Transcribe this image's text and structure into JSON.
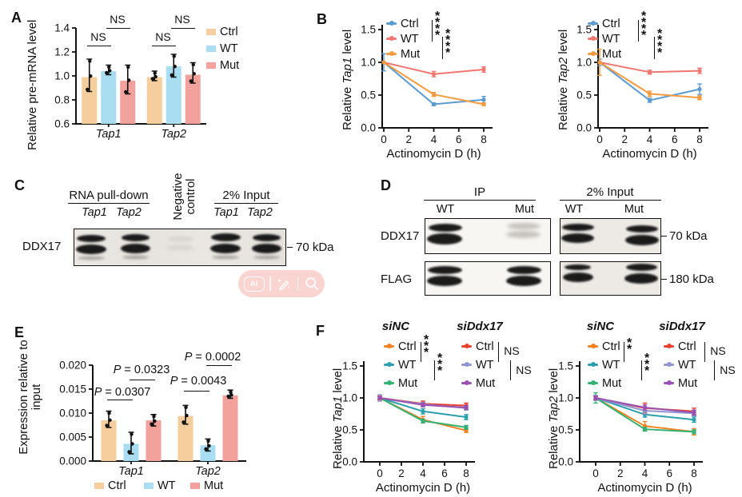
{
  "figure": {
    "panels": {
      "a": "A",
      "b": "B",
      "c": "C",
      "d": "D",
      "e": "E",
      "f": "F"
    }
  },
  "panelC": {
    "group1": "RNA pull-down",
    "group2": "Negative control",
    "group3": "2% Input",
    "lanes": [
      "Tap1",
      "Tap2",
      "Tap1",
      "Tap2"
    ],
    "row_label": "DDX17",
    "marker": "70 kDa"
  },
  "panelD": {
    "groups": [
      "IP",
      "2% Input"
    ],
    "lanes": [
      "WT",
      "Mut",
      "WT",
      "Mut"
    ],
    "rows": [
      "DDX17",
      "FLAG"
    ],
    "markers": [
      "70 kDa",
      "180 kDa"
    ]
  },
  "overlay": {
    "ai_label": "AI"
  },
  "chart_data": [
    {
      "id": "A",
      "type": "bar",
      "ylabel": "Relative pre-mRNA level",
      "ylim": [
        0.6,
        1.4
      ],
      "yticks": [
        0.6,
        0.8,
        1.0,
        1.2,
        1.4
      ],
      "ytick_labels": [
        "0.6",
        "0.8",
        "1.0",
        "1.2",
        "1.4"
      ],
      "categories": [
        "Tap1",
        "Tap2"
      ],
      "grid": false,
      "legend_position": "right",
      "series": [
        {
          "name": "Ctrl",
          "color": "#F6CE9E",
          "values": [
            0.99,
            0.99
          ],
          "err_lo": [
            0.87,
            0.96
          ],
          "err_hi": [
            1.14,
            1.04
          ]
        },
        {
          "name": "WT",
          "color": "#A9DDF1",
          "values": [
            1.04,
            1.08
          ],
          "err_lo": [
            1.01,
            0.99
          ],
          "err_hi": [
            1.09,
            1.18
          ]
        },
        {
          "name": "Mut",
          "color": "#F2A19C",
          "values": [
            0.96,
            1.01
          ],
          "err_lo": [
            0.85,
            0.94
          ],
          "err_hi": [
            1.09,
            1.11
          ]
        }
      ],
      "significance": [
        "NS",
        "NS",
        "NS",
        "NS"
      ]
    },
    {
      "id": "B1",
      "type": "line",
      "ylabel_pre": "Relative ",
      "ylabel_gene": "Tap1",
      "ylabel_post": " level",
      "xlabel": "Actinomycin D (h)",
      "x": [
        0,
        4,
        8
      ],
      "xticks": [
        0,
        2,
        4,
        6,
        8
      ],
      "ylim": [
        0,
        1.5
      ],
      "yticks": [
        0,
        0.5,
        1.0,
        1.5
      ],
      "ytick_labels": [
        "0.0",
        "0.5",
        "1.0",
        "1.5"
      ],
      "grid": false,
      "legend_position": "top-left",
      "series": [
        {
          "name": "Ctrl",
          "color": "#5C9AD2",
          "values": [
            1.0,
            0.36,
            0.43
          ],
          "err": [
            0.13,
            0.02,
            0.05
          ]
        },
        {
          "name": "WT",
          "color": "#F0766F",
          "values": [
            1.0,
            0.82,
            0.89
          ],
          "err": [
            0,
            0.04,
            0.04
          ]
        },
        {
          "name": "Mut",
          "color": "#F29B40",
          "values": [
            1.0,
            0.51,
            0.36
          ],
          "err": [
            0,
            0.03,
            0.02
          ]
        }
      ],
      "significance": [
        "****",
        "****"
      ]
    },
    {
      "id": "B2",
      "type": "line",
      "ylabel_pre": "Relative ",
      "ylabel_gene": "Tap2",
      "ylabel_post": " level",
      "xlabel": "Actinomycin D (h)",
      "x": [
        0,
        4,
        8
      ],
      "xticks": [
        0,
        2,
        4,
        6,
        8
      ],
      "ylim": [
        0,
        1.5
      ],
      "yticks": [
        0,
        0.5,
        1.0,
        1.5
      ],
      "ytick_labels": [
        "0.0",
        "0.5",
        "1.0",
        "1.5"
      ],
      "grid": false,
      "legend_position": "top-left",
      "series": [
        {
          "name": "Ctrl",
          "color": "#5C9AD2",
          "values": [
            1.0,
            0.42,
            0.59
          ],
          "err": [
            0.05,
            0.03,
            0.08
          ]
        },
        {
          "name": "WT",
          "color": "#F0766F",
          "values": [
            1.0,
            0.85,
            0.87
          ],
          "err": [
            0,
            0.03,
            0.04
          ]
        },
        {
          "name": "Mut",
          "color": "#F29B40",
          "values": [
            1.0,
            0.52,
            0.46
          ],
          "err": [
            0.2,
            0.04,
            0.03
          ]
        }
      ],
      "significance": [
        "****",
        "****"
      ]
    },
    {
      "id": "E",
      "type": "bar",
      "ylabel": "Expression relative to input",
      "ylim": [
        0,
        0.02
      ],
      "yticks": [
        0,
        0.005,
        0.01,
        0.015,
        0.02
      ],
      "ytick_labels": [
        "0.000",
        "0.005",
        "0.010",
        "0.015",
        "0.020"
      ],
      "categories": [
        "Tap1",
        "Tap2"
      ],
      "grid": false,
      "legend_position": "bottom",
      "series": [
        {
          "name": "Ctrl",
          "color": "#F6CE9E",
          "values": [
            0.0085,
            0.0094
          ],
          "err_lo": [
            0.007,
            0.0077
          ],
          "err_hi": [
            0.0104,
            0.0116
          ]
        },
        {
          "name": "WT",
          "color": "#A9DDF1",
          "values": [
            0.0036,
            0.0033
          ],
          "err_lo": [
            0.0015,
            0.0021
          ],
          "err_hi": [
            0.006,
            0.0046
          ]
        },
        {
          "name": "Mut",
          "color": "#F2A19C",
          "values": [
            0.0085,
            0.0137
          ],
          "err_lo": [
            0.0073,
            0.0131
          ],
          "err_hi": [
            0.0097,
            0.0148
          ]
        }
      ],
      "significance": [
        "P = 0.0307",
        "P = 0.0323",
        "P = 0.0043",
        "P = 0.0002"
      ]
    },
    {
      "id": "F1",
      "type": "line",
      "ylabel_pre": "Relative ",
      "ylabel_gene": "Tap1",
      "ylabel_post": " level",
      "xlabel": "Actinomycin D (h)",
      "legend_groups": [
        "siNC",
        "siDdx17"
      ],
      "x": [
        0,
        4,
        8
      ],
      "xticks": [
        0,
        2,
        4,
        6,
        8
      ],
      "ylim": [
        0,
        1.5
      ],
      "yticks": [
        0,
        0.5,
        1.0,
        1.5
      ],
      "ytick_labels": [
        "0.0",
        "0.5",
        "1.0",
        "1.5"
      ],
      "grid": false,
      "legend_position": "top",
      "series": [
        {
          "name": "Ctrl",
          "group": "siNC",
          "color": "#F58220",
          "values": [
            1.0,
            0.66,
            0.49
          ],
          "err": [
            0.03,
            0.05,
            0.03
          ]
        },
        {
          "name": "WT",
          "group": "siNC",
          "color": "#2B9FAD",
          "values": [
            1.0,
            0.79,
            0.7
          ],
          "err": [
            0.02,
            0.04,
            0.04
          ]
        },
        {
          "name": "Mut",
          "group": "siNC",
          "color": "#33B273",
          "values": [
            1.0,
            0.64,
            0.54
          ],
          "err": [
            0.02,
            0.03,
            0.03
          ]
        },
        {
          "name": "Ctrl",
          "group": "siDdx17",
          "color": "#E8422F",
          "values": [
            1.0,
            0.91,
            0.88
          ],
          "err": [
            0.03,
            0.04,
            0.04
          ]
        },
        {
          "name": "WT",
          "group": "siDdx17",
          "color": "#9095D2",
          "values": [
            1.0,
            0.9,
            0.84
          ],
          "err": [
            0.05,
            0.03,
            0.03
          ]
        },
        {
          "name": "Mut",
          "group": "siDdx17",
          "color": "#9952B3",
          "values": [
            1.0,
            0.89,
            0.85
          ],
          "err": [
            0.02,
            0.03,
            0.03
          ]
        }
      ],
      "significance": [
        "***",
        "***",
        "NS",
        "NS"
      ]
    },
    {
      "id": "F2",
      "type": "line",
      "ylabel_pre": "Relative ",
      "ylabel_gene": "Tap2",
      "ylabel_post": " level",
      "xlabel": "Actinomycin D (h)",
      "legend_groups": [
        "siNC",
        "siDdx17"
      ],
      "x": [
        0,
        4,
        8
      ],
      "xticks": [
        0,
        2,
        4,
        6,
        8
      ],
      "ylim": [
        0,
        1.5
      ],
      "yticks": [
        0,
        0.5,
        1.0,
        1.5
      ],
      "ytick_labels": [
        "0.0",
        "0.5",
        "1.0",
        "1.5"
      ],
      "grid": false,
      "legend_position": "top",
      "series": [
        {
          "name": "Ctrl",
          "group": "siNC",
          "color": "#F58220",
          "values": [
            1.0,
            0.56,
            0.47
          ],
          "err": [
            0.02,
            0.07,
            0.05
          ]
        },
        {
          "name": "WT",
          "group": "siNC",
          "color": "#2B9FAD",
          "values": [
            1.0,
            0.74,
            0.66
          ],
          "err": [
            0.03,
            0.04,
            0.04
          ]
        },
        {
          "name": "Mut",
          "group": "siNC",
          "color": "#33B273",
          "values": [
            1.0,
            0.51,
            0.47
          ],
          "err": [
            0.08,
            0.03,
            0.03
          ]
        },
        {
          "name": "Ctrl",
          "group": "siDdx17",
          "color": "#E8422F",
          "values": [
            1.0,
            0.84,
            0.79
          ],
          "err": [
            0.03,
            0.08,
            0.05
          ]
        },
        {
          "name": "WT",
          "group": "siDdx17",
          "color": "#9095D2",
          "values": [
            1.0,
            0.8,
            0.76
          ],
          "err": [
            0.04,
            0.05,
            0.04
          ]
        },
        {
          "name": "Mut",
          "group": "siDdx17",
          "color": "#9952B3",
          "values": [
            1.0,
            0.85,
            0.77
          ],
          "err": [
            0.03,
            0.04,
            0.04
          ]
        }
      ],
      "significance": [
        "**",
        "***",
        "NS",
        "NS"
      ]
    }
  ]
}
